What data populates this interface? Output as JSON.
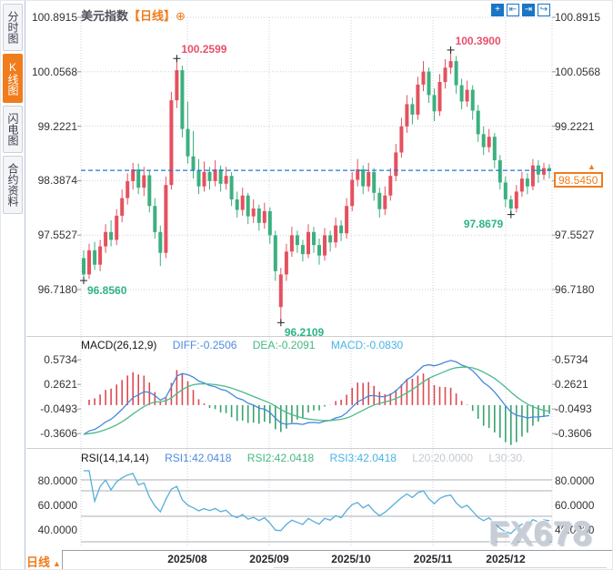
{
  "sidebar": {
    "items": [
      {
        "label": "分时图",
        "active": false
      },
      {
        "label": "K线图",
        "active": true
      },
      {
        "label": "闪电图",
        "active": false
      },
      {
        "label": "合约资料",
        "active": false
      }
    ]
  },
  "header": {
    "symbol": "美元指数",
    "period_tag": "【日线】",
    "add_icon": "⊕"
  },
  "toolbar": {
    "buttons": [
      {
        "name": "crosshair",
        "glyph": "+",
        "active": true
      },
      {
        "name": "scale-compress",
        "glyph": "⇤",
        "active": false
      },
      {
        "name": "scale-expand",
        "glyph": "⇥",
        "active": true
      },
      {
        "name": "exit-chart",
        "glyph": "↪",
        "active": false
      }
    ]
  },
  "axes": {
    "main": [
      "100.8915",
      "100.0568",
      "99.2221",
      "98.3874",
      "97.5527",
      "96.7180"
    ],
    "macd": [
      "0.5734",
      "0.2621",
      "-0.0493",
      "-0.3606"
    ],
    "rsi": [
      "80.0000",
      "60.0000",
      "40.0000"
    ]
  },
  "current_price": {
    "value": "98.5450",
    "marker": "▲"
  },
  "annotations": [
    {
      "label": "100.2599",
      "price": 100.2599,
      "candle": 17,
      "placement": "above",
      "tone": "up"
    },
    {
      "label": "100.3900",
      "price": 100.39,
      "candle": 67,
      "placement": "above",
      "tone": "up"
    },
    {
      "label": "96.8560",
      "price": 96.856,
      "candle": 0,
      "placement": "below",
      "tone": "down"
    },
    {
      "label": "96.2109",
      "price": 96.2109,
      "candle": 36,
      "placement": "below",
      "tone": "down"
    },
    {
      "label": "97.8679",
      "price": 97.8679,
      "candle": 78,
      "placement": "left",
      "tone": "down"
    }
  ],
  "indicators": {
    "macd": {
      "title": "MACD(26,12,9)",
      "diff": "DIFF:-0.2506",
      "dea": "DEA:-0.2091",
      "macd": "MACD:-0.0830"
    },
    "rsi": {
      "title": "RSI(14,14,14)",
      "rsi1": "RSI1:42.0418",
      "rsi2": "RSI2:42.0418",
      "rsi3": "RSI3:42.0418",
      "l20": "L20:20.0000",
      "l30": "L30:30."
    }
  },
  "x_axis": {
    "labels": [
      "2025/08",
      "2025/09",
      "2025/10",
      "2025/11",
      "2025/12"
    ]
  },
  "footer": {
    "period": "日线",
    "arrow": "▲"
  },
  "watermark": "FX678",
  "colors": {
    "up": "#e4515f",
    "down": "#3cb07f",
    "accent": "#f07c1c",
    "dashed_line": "#1f7ad4",
    "diff_line": "#4688dc",
    "dea_line": "#4cb98a",
    "rsi_line": "#56aeda",
    "hist_up": "#dd4a52",
    "hist_down": "#37a36f",
    "annotation_up": "#e8506a",
    "annotation_down": "#2db483"
  },
  "chart_data": {
    "type": "candlestick",
    "title": "美元指数 日线",
    "x_tick_labels": [
      "2025/08",
      "2025/09",
      "2025/10",
      "2025/11",
      "2025/12"
    ],
    "y_ticks": [
      100.8915,
      100.0568,
      99.2221,
      98.3874,
      97.5527,
      96.718
    ],
    "y_range": {
      "top": 100.8915,
      "bottom": 96.718
    },
    "current_price": 98.545,
    "high_annotations": [
      100.2599,
      100.39
    ],
    "low_annotations": [
      96.856,
      96.2109,
      97.8679
    ],
    "macd_ticks": [
      0.5734,
      0.2621,
      -0.0493,
      -0.3606
    ],
    "rsi_ticks": [
      80,
      60,
      40
    ],
    "macd_params": [
      26,
      12,
      9
    ],
    "rsi_params": [
      14,
      14,
      14
    ],
    "candles": [
      [
        97.2,
        97.32,
        96.856,
        96.95
      ],
      [
        96.95,
        97.42,
        96.88,
        97.32
      ],
      [
        97.32,
        97.45,
        97.02,
        97.1
      ],
      [
        97.1,
        97.48,
        97.0,
        97.38
      ],
      [
        97.38,
        97.72,
        97.28,
        97.6
      ],
      [
        97.6,
        97.78,
        97.38,
        97.48
      ],
      [
        97.48,
        97.95,
        97.4,
        97.85
      ],
      [
        97.85,
        98.25,
        97.75,
        98.12
      ],
      [
        98.12,
        98.5,
        98.02,
        98.38
      ],
      [
        98.38,
        98.66,
        98.25,
        98.56
      ],
      [
        98.56,
        98.65,
        98.18,
        98.28
      ],
      [
        98.28,
        98.6,
        98.15,
        98.47
      ],
      [
        98.47,
        98.55,
        97.9,
        98.0
      ],
      [
        98.0,
        98.12,
        97.5,
        97.6
      ],
      [
        97.6,
        97.7,
        97.08,
        97.28
      ],
      [
        97.28,
        98.45,
        97.2,
        98.32
      ],
      [
        98.32,
        99.75,
        98.25,
        99.62
      ],
      [
        99.62,
        100.2599,
        99.5,
        100.08
      ],
      [
        100.08,
        100.15,
        99.05,
        99.18
      ],
      [
        99.18,
        99.6,
        98.65,
        98.76
      ],
      [
        98.76,
        99.15,
        98.42,
        98.55
      ],
      [
        98.55,
        98.72,
        98.18,
        98.3
      ],
      [
        98.3,
        98.68,
        98.22,
        98.52
      ],
      [
        98.52,
        98.6,
        98.25,
        98.38
      ],
      [
        98.38,
        98.7,
        98.3,
        98.56
      ],
      [
        98.56,
        98.62,
        98.22,
        98.34
      ],
      [
        98.34,
        98.6,
        98.25,
        98.46
      ],
      [
        98.46,
        98.52,
        98.0,
        98.1
      ],
      [
        98.1,
        98.22,
        97.82,
        97.94
      ],
      [
        97.94,
        98.28,
        97.85,
        98.16
      ],
      [
        98.16,
        98.2,
        97.72,
        97.84
      ],
      [
        97.84,
        98.1,
        97.74,
        97.96
      ],
      [
        97.96,
        98.02,
        97.62,
        97.74
      ],
      [
        97.74,
        98.05,
        97.65,
        97.92
      ],
      [
        97.92,
        97.98,
        97.42,
        97.55
      ],
      [
        97.55,
        97.62,
        96.85,
        97.0
      ],
      [
        96.45,
        97.05,
        96.2109,
        96.95
      ],
      [
        96.95,
        97.42,
        96.85,
        97.3
      ],
      [
        97.3,
        97.68,
        97.22,
        97.55
      ],
      [
        97.55,
        97.62,
        97.28,
        97.4
      ],
      [
        97.4,
        97.48,
        97.15,
        97.26
      ],
      [
        97.26,
        97.72,
        97.2,
        97.6
      ],
      [
        97.6,
        97.68,
        97.28,
        97.4
      ],
      [
        97.4,
        97.5,
        97.1,
        97.24
      ],
      [
        97.24,
        97.66,
        97.16,
        97.55
      ],
      [
        97.55,
        97.62,
        97.3,
        97.44
      ],
      [
        97.44,
        97.82,
        97.36,
        97.7
      ],
      [
        97.7,
        97.78,
        97.46,
        97.58
      ],
      [
        97.58,
        98.12,
        97.5,
        98.0
      ],
      [
        98.0,
        98.52,
        97.92,
        98.4
      ],
      [
        98.4,
        98.72,
        98.3,
        98.56
      ],
      [
        98.56,
        98.62,
        98.18,
        98.3
      ],
      [
        98.3,
        98.66,
        98.22,
        98.52
      ],
      [
        98.52,
        98.58,
        98.08,
        98.2
      ],
      [
        98.2,
        98.28,
        97.82,
        97.95
      ],
      [
        97.95,
        98.3,
        97.86,
        98.16
      ],
      [
        98.16,
        98.58,
        98.08,
        98.46
      ],
      [
        98.46,
        98.95,
        98.38,
        98.82
      ],
      [
        98.82,
        99.35,
        98.74,
        99.22
      ],
      [
        99.22,
        99.7,
        99.12,
        99.56
      ],
      [
        99.56,
        99.66,
        99.25,
        99.4
      ],
      [
        99.4,
        99.98,
        99.32,
        99.86
      ],
      [
        99.86,
        100.22,
        99.76,
        100.06
      ],
      [
        100.06,
        100.12,
        99.58,
        99.7
      ],
      [
        99.7,
        99.8,
        99.3,
        99.45
      ],
      [
        99.45,
        100.02,
        99.38,
        99.9
      ],
      [
        99.9,
        100.25,
        99.8,
        100.12
      ],
      [
        100.12,
        100.39,
        100.02,
        100.22
      ],
      [
        100.22,
        100.3,
        99.72,
        99.85
      ],
      [
        99.85,
        99.95,
        99.48,
        99.6
      ],
      [
        99.6,
        99.92,
        99.52,
        99.78
      ],
      [
        99.78,
        99.85,
        99.32,
        99.46
      ],
      [
        99.46,
        99.55,
        98.98,
        99.1
      ],
      [
        99.1,
        99.22,
        98.78,
        98.9
      ],
      [
        98.9,
        99.18,
        98.82,
        99.06
      ],
      [
        99.06,
        99.12,
        98.58,
        98.7
      ],
      [
        98.7,
        98.78,
        98.25,
        98.36
      ],
      [
        98.36,
        98.45,
        97.98,
        98.1
      ],
      [
        98.1,
        98.16,
        97.8679,
        97.96
      ],
      [
        97.96,
        98.32,
        97.9,
        98.22
      ],
      [
        98.22,
        98.52,
        98.14,
        98.42
      ],
      [
        98.42,
        98.5,
        98.18,
        98.3
      ],
      [
        98.3,
        98.72,
        98.24,
        98.62
      ],
      [
        98.62,
        98.7,
        98.35,
        98.48
      ],
      [
        98.48,
        98.66,
        98.4,
        98.58
      ],
      [
        98.58,
        98.64,
        98.42,
        98.545
      ]
    ]
  }
}
